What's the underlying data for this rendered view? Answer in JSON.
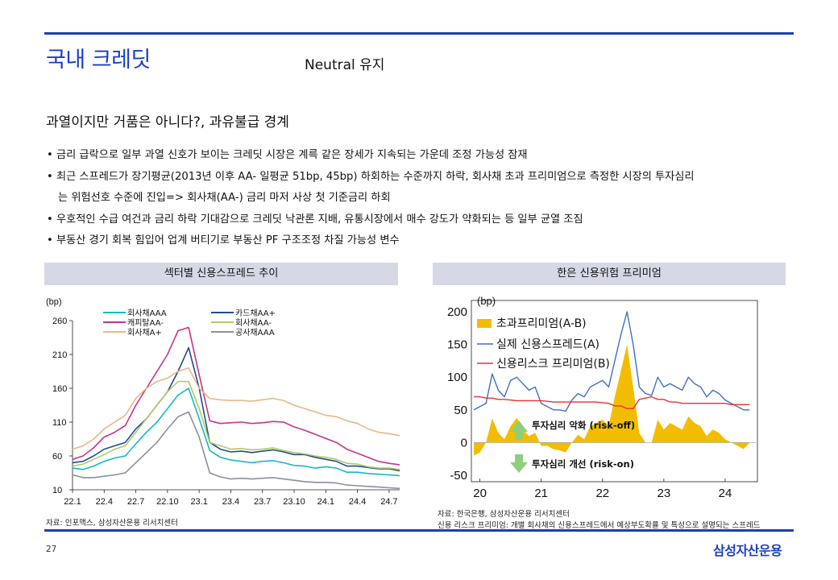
{
  "header": {
    "title": "국내 크레딧",
    "subtitle": "Neutral 유지"
  },
  "headline": "과열이지만 거품은 아니다?, 과유불급 경계",
  "bullets": [
    {
      "text": "• 금리 급락으로 일부 과열 신호가 보이는 크레딧 시장은 계륵 같은 장세가 지속되는 가운데 조정 가능성 잠재"
    },
    {
      "text": "• 최근 스프레드가 장기평균(2013년 이후 AA- 일평균 51bp, 45bp) 하회하는 수준까지 하락, 회사채 초과 프리미엄으로 측정한 시장의 투자심리",
      "cont": "는 위험선호 수준에 진입=> 회사채(AA-) 금리 마저 사상 첫 기준금리 하회"
    },
    {
      "text": "• 우호적인 수급 여건과 금리 하락 기대감으로 크레딧 낙관론 지배, 유통시장에서 매수 강도가 약화되는 등 일부 균열 조짐"
    },
    {
      "text": "• 부동산 경기 회복 힘입어 업계 버티기로 부동산 PF 구조조정 차질 가능성 변수"
    }
  ],
  "left_panel": {
    "heading": "섹터별 신용스프레드 추이",
    "source": "자료: 인포맥스, 삼성자산운용 리서치센터"
  },
  "right_panel": {
    "heading": "한은 신용위험 프리미엄",
    "source_1": "자료: 한국은행, 삼성자산운용 리서치센터",
    "source_2": "신용 리스크 프리미엄: 개별 회사채의 신용스프레드에서 예상부도확률 및 특성으로 설명되는 스프레드"
  },
  "footer": {
    "page": "27",
    "logo": "삼성자산운용"
  },
  "chart_data": [
    {
      "type": "line",
      "title": "섹터별 신용스프레드 추이",
      "ylabel": "(bp)",
      "ylim": [
        10,
        260
      ],
      "yticks": [
        10,
        60,
        110,
        160,
        210,
        260
      ],
      "xlim": [
        0,
        31
      ],
      "xticks": [
        0,
        3,
        6,
        9,
        12,
        15,
        18,
        21,
        24,
        27,
        30
      ],
      "xticklabels": [
        "22.1",
        "22.4",
        "22.7",
        "22.10",
        "23.1",
        "23.4",
        "23.7",
        "23.10",
        "24.1",
        "24.4",
        "24.7"
      ],
      "legend_location": "top",
      "x": [
        0,
        1,
        2,
        3,
        4,
        5,
        6,
        7,
        8,
        9,
        10,
        11,
        12,
        13,
        14,
        15,
        16,
        17,
        18,
        19,
        20,
        21,
        22,
        23,
        24,
        25,
        26,
        27,
        28,
        29,
        30,
        31
      ],
      "series": [
        {
          "name": "회사채AAA",
          "color": "#16b9c7",
          "values": [
            42,
            40,
            45,
            52,
            57,
            60,
            78,
            95,
            110,
            130,
            150,
            160,
            115,
            68,
            58,
            54,
            52,
            50,
            52,
            53,
            50,
            46,
            45,
            42,
            44,
            42,
            36,
            36,
            34,
            33,
            32,
            31
          ]
        },
        {
          "name": "카드채AA+",
          "color": "#1f4e8c",
          "values": [
            50,
            52,
            60,
            70,
            75,
            80,
            100,
            115,
            135,
            155,
            185,
            220,
            160,
            80,
            70,
            66,
            67,
            65,
            67,
            69,
            66,
            62,
            62,
            58,
            55,
            52,
            45,
            45,
            43,
            41,
            41,
            38
          ]
        },
        {
          "name": "캐피탈AA-",
          "color": "#c9338a",
          "values": [
            55,
            60,
            72,
            88,
            95,
            105,
            135,
            160,
            185,
            210,
            245,
            250,
            180,
            112,
            108,
            109,
            110,
            108,
            109,
            111,
            110,
            103,
            98,
            92,
            86,
            80,
            70,
            64,
            58,
            52,
            49,
            47
          ]
        },
        {
          "name": "회사채AA-",
          "color": "#b3c96a",
          "values": [
            45,
            48,
            55,
            62,
            70,
            75,
            95,
            115,
            135,
            155,
            170,
            170,
            130,
            80,
            75,
            70,
            71,
            69,
            70,
            72,
            68,
            65,
            63,
            60,
            58,
            55,
            49,
            48,
            44,
            42,
            42,
            40
          ]
        },
        {
          "name": "회사채A+",
          "color": "#e8b784",
          "values": [
            70,
            75,
            85,
            100,
            110,
            120,
            145,
            160,
            170,
            175,
            185,
            190,
            160,
            145,
            143,
            142,
            142,
            141,
            143,
            145,
            142,
            135,
            130,
            125,
            120,
            118,
            112,
            108,
            100,
            95,
            93,
            90
          ]
        },
        {
          "name": "공사채AAA",
          "color": "#8e8e9e",
          "values": [
            32,
            28,
            28,
            30,
            32,
            35,
            50,
            65,
            80,
            100,
            118,
            125,
            88,
            35,
            29,
            26,
            27,
            26,
            27,
            28,
            26,
            24,
            22,
            21,
            21,
            20,
            17,
            16,
            15,
            14,
            13,
            12
          ]
        }
      ]
    },
    {
      "type": "line",
      "title": "한은 신용위험 프리미엄",
      "ylabel": "(bp)",
      "ylim": [
        -50,
        200
      ],
      "yticks": [
        -50,
        0,
        50,
        100,
        150,
        200
      ],
      "xlim": [
        0,
        46
      ],
      "xticks": [
        1,
        11,
        21,
        31,
        41
      ],
      "xticklabels": [
        "20",
        "21",
        "22",
        "23",
        "24"
      ],
      "legend_location": "top-left",
      "annotations": [
        "투자심리 악화 (risk-off)",
        "투자심리 개선 (risk-on)"
      ],
      "x": [
        0,
        1,
        2,
        3,
        4,
        5,
        6,
        7,
        8,
        9,
        10,
        11,
        12,
        13,
        14,
        15,
        16,
        17,
        18,
        19,
        20,
        21,
        22,
        23,
        24,
        25,
        26,
        27,
        28,
        29,
        30,
        31,
        32,
        33,
        34,
        35,
        36,
        37,
        38,
        39,
        40,
        41,
        42,
        43,
        44,
        45
      ],
      "series": [
        {
          "name": "초과프리미엄(A-B)",
          "color": "#f2bd00",
          "type": "area",
          "values": [
            -20,
            -15,
            0,
            37,
            15,
            5,
            25,
            38,
            20,
            10,
            15,
            -5,
            -5,
            -10,
            -12,
            -15,
            0,
            12,
            5,
            25,
            30,
            35,
            25,
            70,
            110,
            150,
            85,
            15,
            0,
            0,
            35,
            20,
            30,
            25,
            20,
            40,
            30,
            25,
            10,
            20,
            15,
            5,
            0,
            -5,
            -10,
            0
          ]
        },
        {
          "name": "실제 신용스프레드(A)",
          "color": "#3f6fc6",
          "values": [
            50,
            55,
            60,
            105,
            80,
            70,
            95,
            100,
            90,
            80,
            85,
            60,
            55,
            50,
            50,
            48,
            65,
            75,
            70,
            85,
            90,
            95,
            85,
            125,
            165,
            200,
            150,
            85,
            75,
            72,
            100,
            85,
            90,
            85,
            80,
            100,
            90,
            85,
            70,
            80,
            75,
            65,
            60,
            55,
            50,
            50
          ]
        },
        {
          "name": "신용리스크 프리미엄(B)",
          "color": "#e83232",
          "values": [
            70,
            70,
            68,
            68,
            66,
            66,
            65,
            64,
            64,
            64,
            64,
            64,
            63,
            62,
            62,
            62,
            62,
            62,
            62,
            62,
            62,
            61,
            60,
            56,
            56,
            52,
            52,
            66,
            68,
            70,
            66,
            66,
            62,
            62,
            60,
            60,
            60,
            60,
            60,
            60,
            60,
            60,
            58,
            58,
            58,
            58
          ]
        }
      ]
    }
  ]
}
